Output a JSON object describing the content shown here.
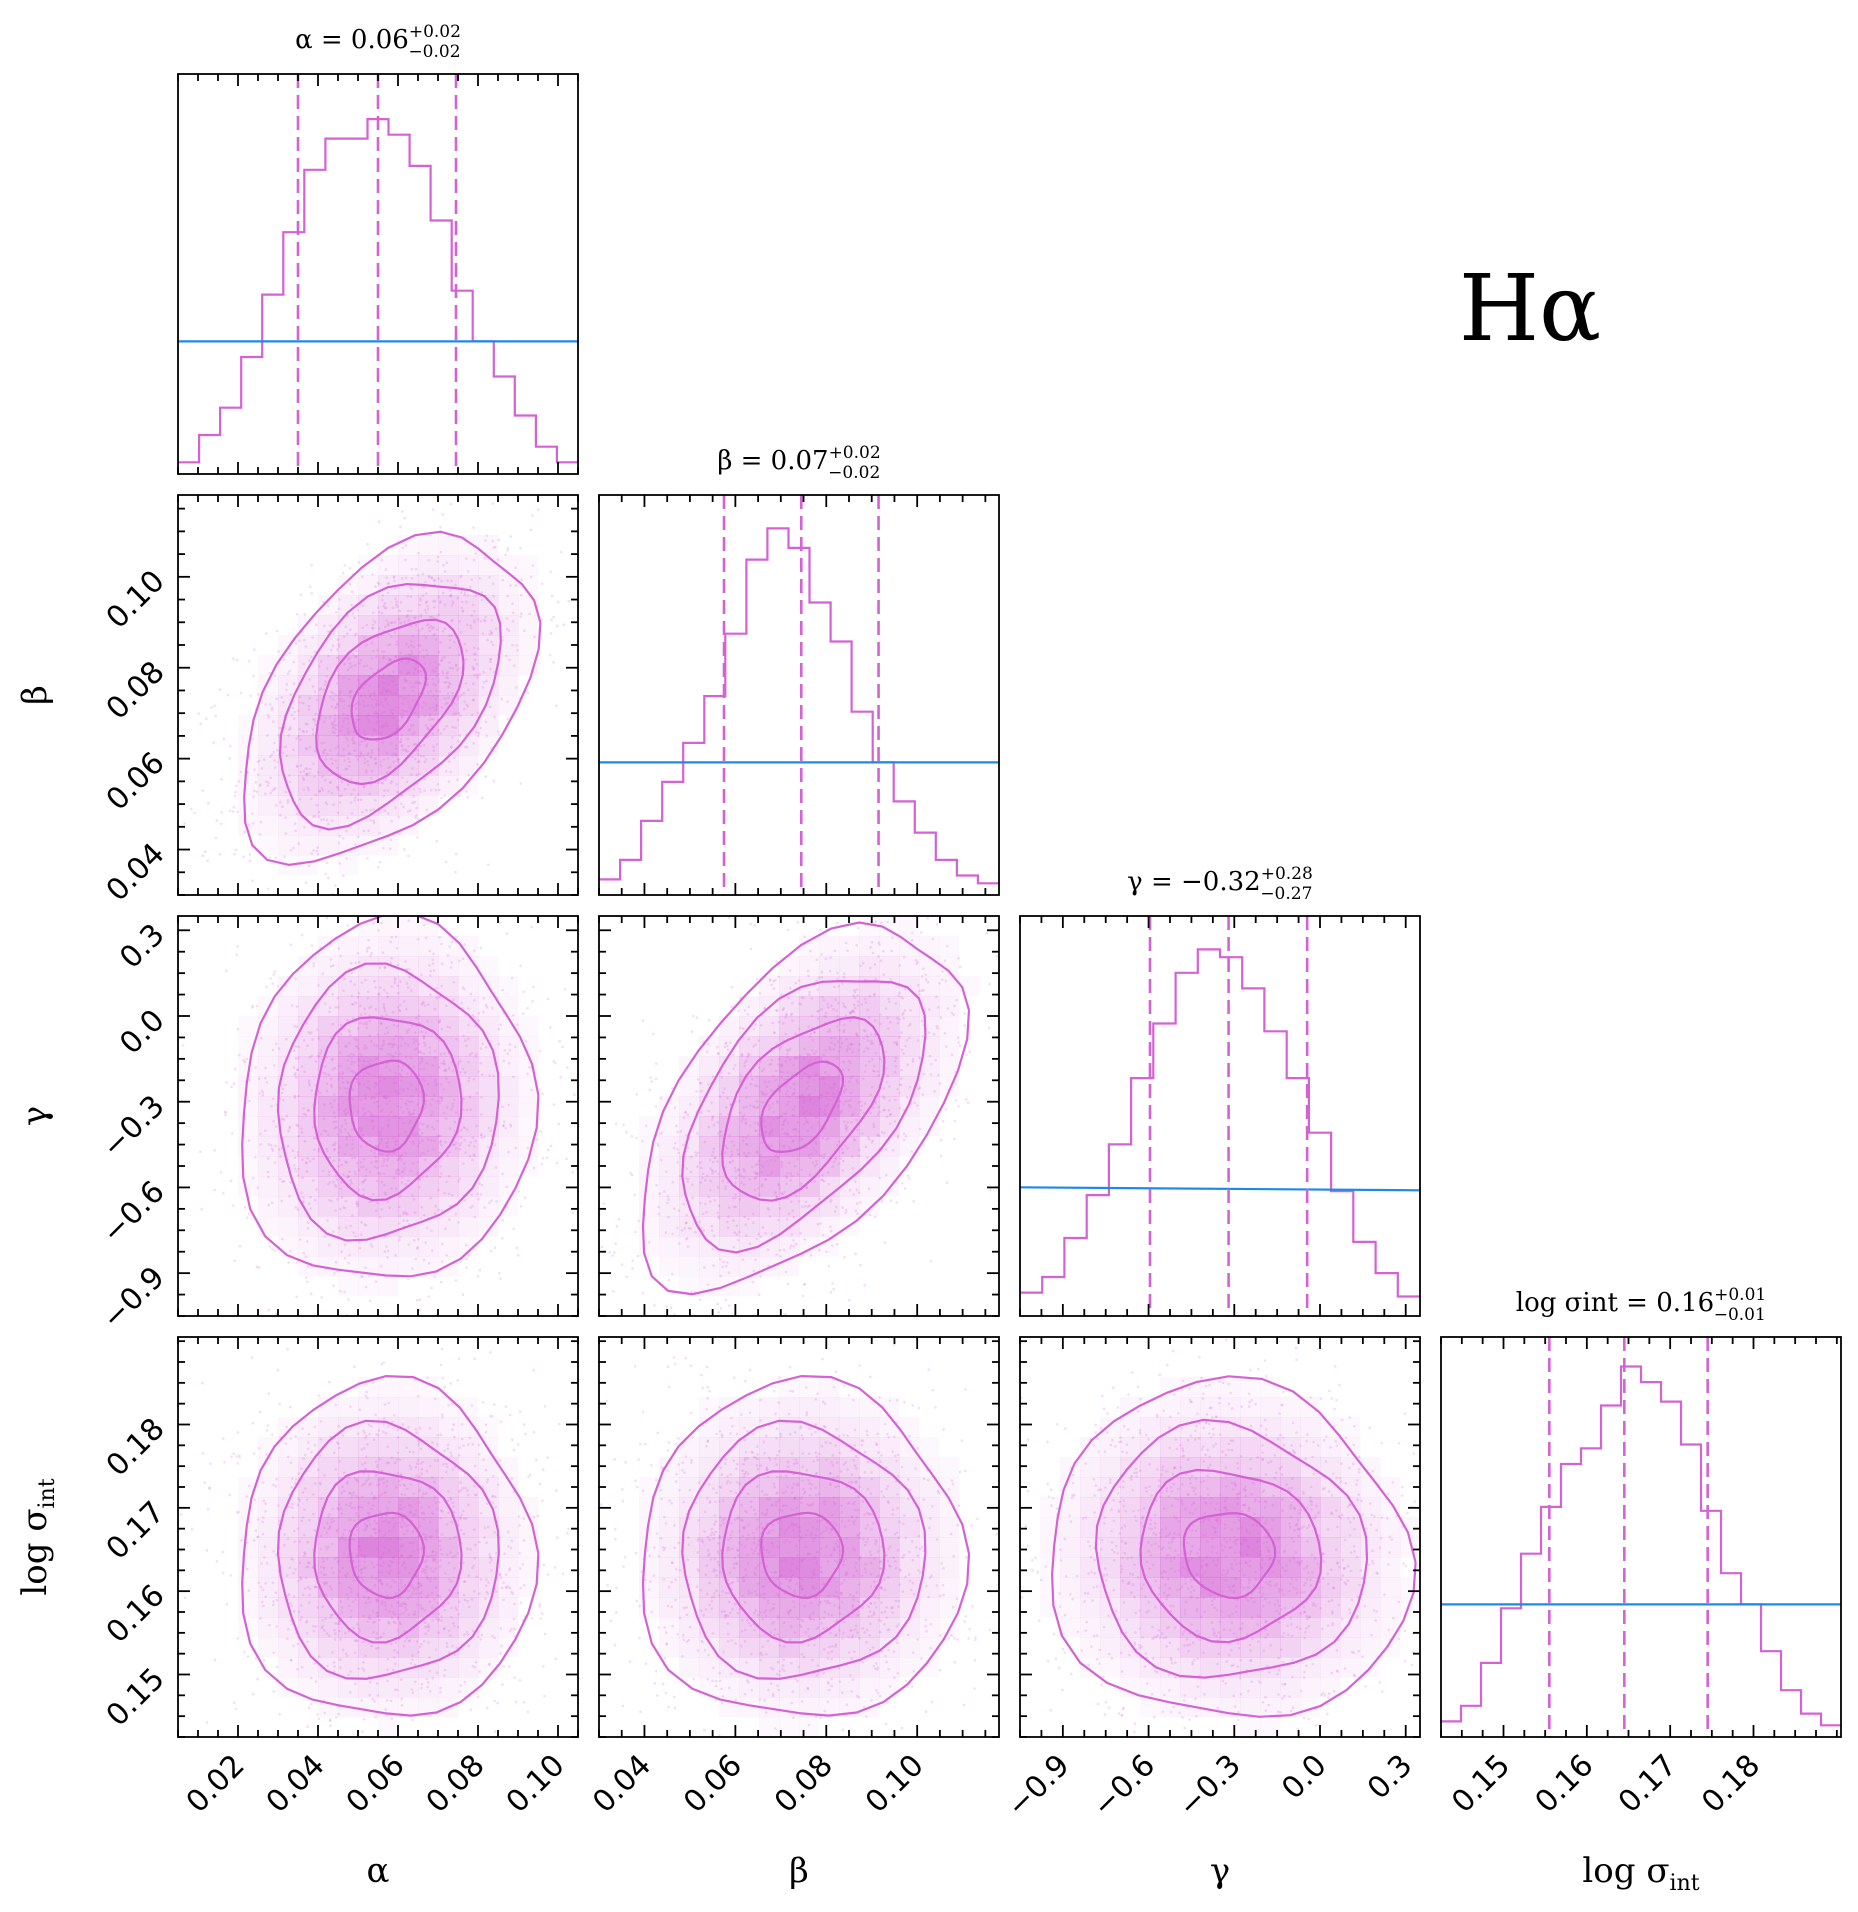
{
  "chart_data": {
    "type": "corner",
    "corner_label": "Hα",
    "params": [
      {
        "key": "alpha",
        "label": "α",
        "range": [
          0.005,
          0.105
        ],
        "ticks": [
          0.02,
          0.04,
          0.06,
          0.08,
          0.1
        ],
        "tick_labels": [
          "0.02",
          "0.04",
          "0.06",
          "0.08",
          "0.10"
        ],
        "title_lhs": "α = 0.06",
        "title_plus": "+0.02",
        "title_minus": "−0.02",
        "quantiles": [
          0.035,
          0.055,
          0.0745
        ],
        "hist": [
          3,
          10,
          17,
          30,
          46,
          62,
          78,
          86,
          86,
          91,
          87,
          79,
          65,
          47,
          34,
          25,
          15,
          7,
          3
        ],
        "prior_level": 34
      },
      {
        "key": "beta",
        "label": "β",
        "range": [
          0.03,
          0.118
        ],
        "ticks": [
          0.04,
          0.06,
          0.08,
          0.1
        ],
        "tick_labels": [
          "0.04",
          "0.06",
          "0.08",
          "0.10"
        ],
        "title_lhs": "β = 0.07",
        "title_plus": "+0.02",
        "title_minus": "−0.02",
        "quantiles": [
          0.0575,
          0.0745,
          0.0915
        ],
        "hist": [
          4,
          9,
          19,
          29,
          39,
          51,
          67,
          86,
          94,
          89,
          75,
          65,
          47,
          34,
          24,
          16,
          9,
          5,
          3
        ],
        "prior_level": 34
      },
      {
        "key": "gamma",
        "label": "γ",
        "range": [
          -1.05,
          0.35
        ],
        "ticks": [
          -0.9,
          -0.6,
          -0.3,
          0.0,
          0.3
        ],
        "tick_labels": [
          "−0.9",
          "−0.6",
          "−0.3",
          "0.0",
          "0.3"
        ],
        "title_lhs": "γ = −0.32",
        "title_plus": "+0.28",
        "title_minus": "−0.27",
        "quantiles": [
          -0.595,
          -0.32,
          -0.045
        ],
        "hist": [
          6,
          10,
          20,
          31,
          44,
          61,
          75,
          88,
          94,
          92,
          84,
          73,
          61,
          47,
          32,
          19,
          11,
          5
        ],
        "prior_level": 33
      },
      {
        "key": "logsig",
        "label": "log σint",
        "range": [
          0.1425,
          0.1905
        ],
        "ticks": [
          0.15,
          0.16,
          0.17,
          0.18
        ],
        "tick_labels": [
          "0.15",
          "0.16",
          "0.17",
          "0.18"
        ],
        "title_lhs": "log σint = 0.16",
        "title_plus": "+0.01",
        "title_minus": "−0.01",
        "quantiles": [
          0.1555,
          0.1645,
          0.1745
        ],
        "hist": [
          4,
          8,
          19,
          33,
          47,
          59,
          70,
          74,
          85,
          95,
          91,
          86,
          75,
          58,
          42,
          34,
          22,
          12,
          6,
          3
        ],
        "prior_level": 34
      }
    ],
    "pairs": [
      {
        "x": "alpha",
        "y": "beta",
        "mean": [
          0.0575,
          0.073
        ],
        "sd": [
          0.016,
          0.0155
        ],
        "corr": 0.46
      },
      {
        "x": "alpha",
        "y": "gamma",
        "mean": [
          0.057,
          -0.31
        ],
        "sd": [
          0.016,
          0.275
        ],
        "corr": 0.05
      },
      {
        "x": "beta",
        "y": "gamma",
        "mean": [
          0.0745,
          -0.32
        ],
        "sd": [
          0.0155,
          0.275
        ],
        "corr": 0.52
      },
      {
        "x": "alpha",
        "y": "logsig",
        "mean": [
          0.057,
          0.1645
        ],
        "sd": [
          0.016,
          0.0088
        ],
        "corr": 0.0
      },
      {
        "x": "beta",
        "y": "logsig",
        "mean": [
          0.0745,
          0.1645
        ],
        "sd": [
          0.0155,
          0.0088
        ],
        "corr": 0.0
      },
      {
        "x": "gamma",
        "y": "logsig",
        "mean": [
          -0.32,
          0.1645
        ],
        "sd": [
          0.275,
          0.0088
        ],
        "corr": -0.05
      }
    ],
    "contour_levels_sigma": [
      0.5,
      1.0,
      1.5,
      2.0
    ],
    "colors": {
      "posterior": "#d462d4",
      "prior": "#1e8ae6",
      "frame": "#000000"
    }
  }
}
